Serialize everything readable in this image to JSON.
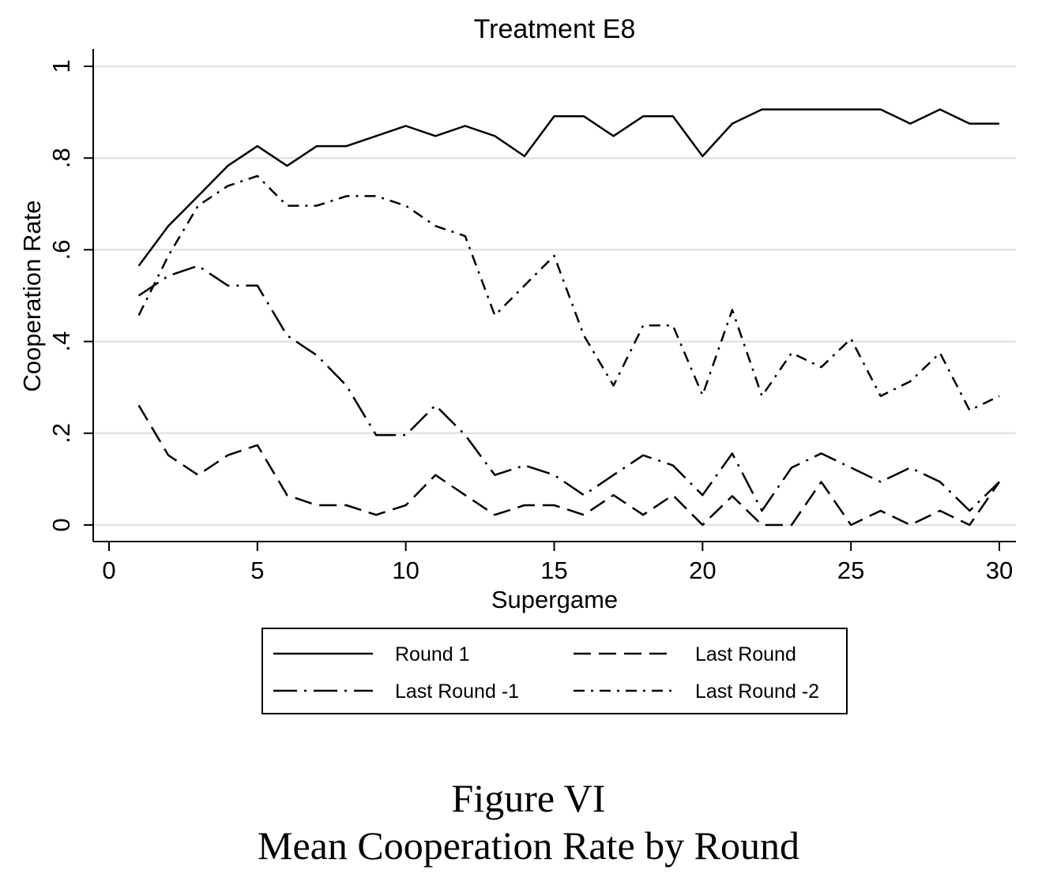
{
  "figure": {
    "label": "Figure VI",
    "caption": "Mean Cooperation Rate by Round"
  },
  "chart_data": {
    "type": "line",
    "title": "Treatment E8",
    "xlabel": "Supergame",
    "ylabel": "Cooperation Rate",
    "xlim": [
      0,
      30
    ],
    "ylim": [
      0,
      1
    ],
    "xticks": [
      0,
      5,
      10,
      15,
      20,
      25,
      30
    ],
    "xtick_labels": [
      "0",
      "5",
      "10",
      "15",
      "20",
      "25",
      "30"
    ],
    "yticks": [
      0,
      0.2,
      0.4,
      0.6,
      0.8,
      1
    ],
    "ytick_labels": [
      "0",
      ".2",
      ".4",
      ".6",
      ".8",
      "1"
    ],
    "grid": "horizontal",
    "legend_position": "bottom",
    "x": [
      1,
      2,
      3,
      4,
      5,
      6,
      7,
      8,
      9,
      10,
      11,
      12,
      13,
      14,
      15,
      16,
      17,
      18,
      19,
      20,
      21,
      22,
      23,
      24,
      25,
      26,
      27,
      28,
      29,
      30
    ],
    "series": [
      {
        "name": "Round 1",
        "dash": "solid",
        "values": [
          0.565,
          0.652,
          0.717,
          0.783,
          0.826,
          0.783,
          0.826,
          0.826,
          0.848,
          0.87,
          0.848,
          0.87,
          0.848,
          0.804,
          0.891,
          0.891,
          0.848,
          0.891,
          0.891,
          0.804,
          0.875,
          0.906,
          0.906,
          0.906,
          0.906,
          0.906,
          0.875,
          0.906,
          0.875,
          0.875
        ]
      },
      {
        "name": "Last Round",
        "dash": "dashed",
        "values": [
          0.261,
          0.152,
          0.109,
          0.152,
          0.174,
          0.065,
          0.043,
          0.043,
          0.022,
          0.043,
          0.109,
          0.065,
          0.022,
          0.043,
          0.043,
          0.022,
          0.065,
          0.022,
          0.065,
          0.0,
          0.063,
          0.0,
          0.0,
          0.094,
          0.0,
          0.031,
          0.0,
          0.031,
          0.0,
          0.094
        ]
      },
      {
        "name": "Last Round -1",
        "dash": "longdash-dot",
        "values": [
          0.5,
          0.543,
          0.565,
          0.522,
          0.522,
          0.413,
          0.37,
          0.304,
          0.196,
          0.196,
          0.261,
          0.196,
          0.109,
          0.13,
          0.109,
          0.065,
          0.109,
          0.152,
          0.13,
          0.065,
          0.156,
          0.031,
          0.125,
          0.156,
          0.125,
          0.094,
          0.125,
          0.094,
          0.031,
          0.094
        ]
      },
      {
        "name": "Last Round -2",
        "dash": "dash-dot",
        "values": [
          0.457,
          0.587,
          0.696,
          0.739,
          0.761,
          0.696,
          0.696,
          0.717,
          0.717,
          0.696,
          0.652,
          0.63,
          0.457,
          0.522,
          0.587,
          0.413,
          0.304,
          0.435,
          0.435,
          0.283,
          0.469,
          0.281,
          0.375,
          0.344,
          0.406,
          0.281,
          0.313,
          0.375,
          0.25,
          0.281
        ]
      }
    ]
  }
}
